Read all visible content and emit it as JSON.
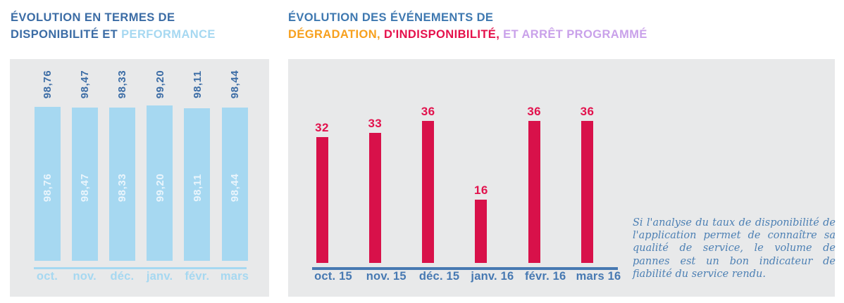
{
  "colors": {
    "panel_bg": "#e8e9ea",
    "title_dark_blue": "#3b6ca5",
    "title_medium_blue": "#3e78b0",
    "light_blue": "#a6d8f1",
    "bar_red": "#d8114a",
    "value_red": "#e2124d",
    "orange": "#f7a01d",
    "lavender": "#c9a1ea",
    "steel_blue": "#4779b2",
    "note_blue": "#4d80b4",
    "inner_label_white": "#eaf5fc"
  },
  "header_left": {
    "line1": [
      {
        "text": "ÉVOLUTION EN TERMES DE",
        "color": "#3b6ca5"
      }
    ],
    "line2": [
      {
        "text": "DISPONIBILITÉ ET ",
        "color": "#3b6ca5"
      },
      {
        "text": "PERFORMANCE",
        "color": "#a6d8f1"
      }
    ]
  },
  "header_right": {
    "line1": [
      {
        "text": "ÉVOLUTION DES ÉVÉNEMENTS DE",
        "color": "#3e78b0"
      }
    ],
    "line2": [
      {
        "text": "DÉGRADATION,",
        "color": "#f7a01d"
      },
      {
        "text": " D'INDISPONIBILITÉ,",
        "color": "#e5104b"
      },
      {
        "text": " ET ARRÊT PROGRAMMÉ",
        "color": "#c9a1ea"
      }
    ]
  },
  "chart_data": [
    {
      "type": "bar",
      "title": "ÉVOLUTION EN TERMES DE DISPONIBILITÉ ET PERFORMANCE",
      "categories": [
        "oct.",
        "nov.",
        "déc.",
        "janv.",
        "févr.",
        "mars"
      ],
      "values": [
        98.76,
        98.47,
        98.33,
        99.2,
        98.11,
        98.44
      ],
      "value_labels": [
        "98,76",
        "98,47",
        "98,33",
        "99,20",
        "98,11",
        "98,44"
      ],
      "value_label_position": "above-rotated-and-inside-rotated",
      "bar_color": "#a6d8f1",
      "above_label_color": "#3b6ca5",
      "inner_label_color": "#eaf5fc",
      "axis_color": "#a6d8f1",
      "category_label_color": "#a6d8f1",
      "ylim": [
        0,
        100
      ],
      "grid": false,
      "legend": "none"
    },
    {
      "type": "bar",
      "title": "ÉVOLUTION DES ÉVÉNEMENTS DE DÉGRADATION, D'INDISPONIBILITÉ, ET ARRÊT PROGRAMMÉ",
      "categories": [
        "oct. 15",
        "nov. 15",
        "déc. 15",
        "janv. 16",
        "févr. 16",
        "mars 16"
      ],
      "values": [
        32,
        33,
        36,
        16,
        36,
        36
      ],
      "value_labels": [
        "32",
        "33",
        "36",
        "16",
        "36",
        "36"
      ],
      "value_label_position": "above",
      "bar_color": "#d8114a",
      "above_label_color": "#e2124d",
      "axis_color": "#4779b2",
      "category_label_color": "#4779b2",
      "ylim": [
        0,
        40
      ],
      "grid": false,
      "legend": "none"
    }
  ],
  "note": {
    "text": "Si l'analyse du taux de disponibilité de l'application permet de connaître sa qualité de service, le volume de pannes est un bon indicateur de fiabilité du service rendu.",
    "color": "#4d80b4"
  }
}
